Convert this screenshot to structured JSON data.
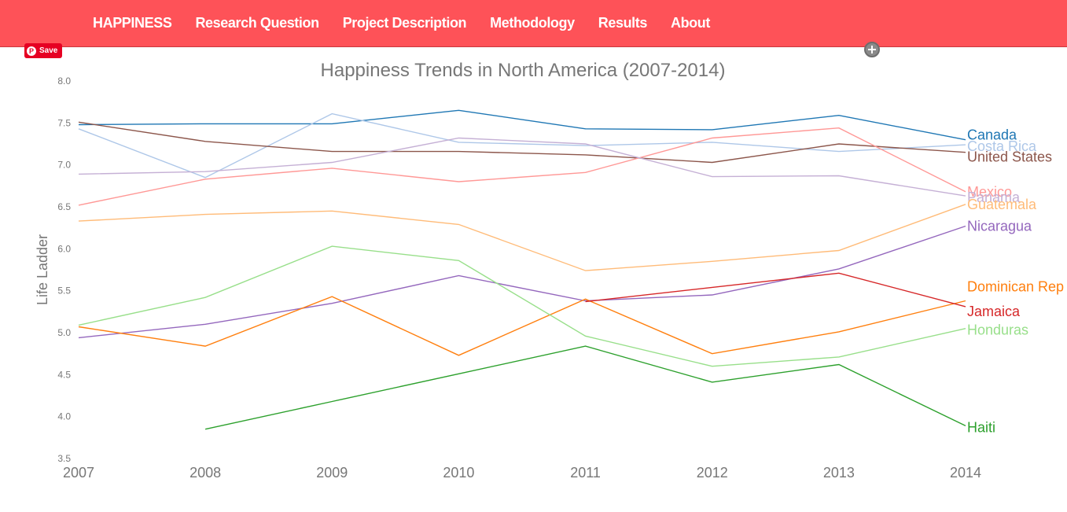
{
  "nav": {
    "items": [
      "HAPPINESS",
      "Research Question",
      "Project Description",
      "Methodology",
      "Results",
      "About"
    ]
  },
  "pinterest": {
    "save_label": "Save",
    "icon": "pinterest-icon"
  },
  "zoom": {
    "icon": "zoom-icon"
  },
  "chart_data": {
    "type": "line",
    "title": "Happiness Trends in North America (2007-2014)",
    "xlabel": "",
    "ylabel": "Life Ladder",
    "x": [
      2007,
      2008,
      2009,
      2010,
      2011,
      2012,
      2013,
      2014
    ],
    "x_tick_labels": [
      "2007",
      "2008",
      "2009",
      "2010",
      "2011",
      "2012",
      "2013",
      "2014"
    ],
    "y_tick_labels": [
      "3.5",
      "4.0",
      "4.5",
      "5.0",
      "5.5",
      "6.0",
      "6.5",
      "7.0",
      "7.5",
      "8.0"
    ],
    "ylim": [
      3.5,
      8.0
    ],
    "grid": false,
    "legend": "end-of-line labels",
    "series": [
      {
        "name": "Canada",
        "color": "#1f77b4",
        "values": [
          7.48,
          7.49,
          7.49,
          7.65,
          7.43,
          7.42,
          7.59,
          7.3
        ]
      },
      {
        "name": "Costa Rica",
        "color": "#aec7e8",
        "values": [
          7.43,
          6.85,
          7.61,
          7.27,
          7.23,
          7.27,
          7.16,
          7.24
        ]
      },
      {
        "name": "United States",
        "color": "#8c564b",
        "values": [
          7.51,
          7.28,
          7.16,
          7.16,
          7.12,
          7.03,
          7.25,
          7.15
        ]
      },
      {
        "name": "Mexico",
        "color": "#ff9896",
        "values": [
          6.52,
          6.83,
          6.96,
          6.8,
          6.91,
          7.32,
          7.44,
          6.68
        ]
      },
      {
        "name": "Panama",
        "color": "#c5b0d5",
        "values": [
          6.89,
          6.92,
          7.03,
          7.32,
          7.25,
          6.86,
          6.87,
          6.63
        ]
      },
      {
        "name": "Guatemala",
        "color": "#ffbb78",
        "values": [
          6.33,
          6.41,
          6.45,
          6.29,
          5.74,
          5.85,
          5.98,
          6.53
        ]
      },
      {
        "name": "Nicaragua",
        "color": "#9467bd",
        "values": [
          4.94,
          5.1,
          5.35,
          5.68,
          5.38,
          5.45,
          5.76,
          6.27
        ]
      },
      {
        "name": "Dominican Rep",
        "color": "#ff7f0e",
        "values": [
          5.07,
          4.84,
          5.43,
          4.73,
          5.4,
          4.75,
          5.01,
          5.38
        ]
      },
      {
        "name": "Jamaica",
        "color": "#d62728",
        "values": [
          null,
          null,
          null,
          null,
          5.37,
          5.54,
          5.71,
          5.31
        ]
      },
      {
        "name": "Honduras",
        "color": "#98df8a",
        "values": [
          5.09,
          5.42,
          6.03,
          5.86,
          4.96,
          4.6,
          4.71,
          5.05
        ]
      },
      {
        "name": "Haiti",
        "color": "#2ca02c",
        "values": [
          null,
          3.85,
          4.18,
          4.51,
          4.84,
          4.41,
          4.62,
          3.89
        ]
      }
    ]
  }
}
